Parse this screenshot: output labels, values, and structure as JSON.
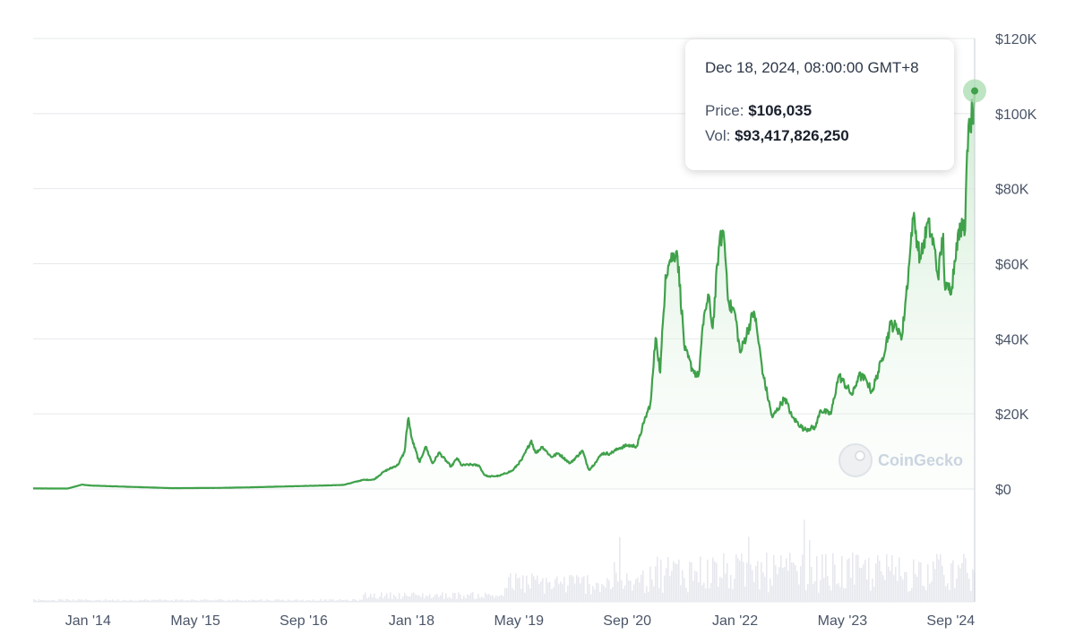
{
  "chart_data": {
    "type": "area",
    "title": "",
    "xlabel": "",
    "ylabel": "",
    "x_tick_labels": [
      "Jan '14",
      "May '15",
      "Sep '16",
      "Jan '18",
      "May '19",
      "Sep '20",
      "Jan '22",
      "May '23",
      "Sep '24"
    ],
    "x_tick_dates": [
      "2014-01-01",
      "2015-05-01",
      "2016-09-01",
      "2018-01-01",
      "2019-05-01",
      "2020-09-01",
      "2022-01-01",
      "2023-05-01",
      "2024-09-01"
    ],
    "y_tick_labels": [
      "$120K",
      "$100K",
      "$80K",
      "$60K",
      "$40K",
      "$20K",
      "$0"
    ],
    "y_tick_values": [
      120000,
      100000,
      80000,
      60000,
      40000,
      20000,
      0
    ],
    "xlim": [
      "2013-04-28",
      "2024-12-18"
    ],
    "ylim": [
      0,
      120000
    ],
    "grid": true,
    "colors": {
      "line": "#3fa14a",
      "fill_top": "#c8e8cb",
      "grid": "#e6e8eb",
      "volume": "#e6e8ee",
      "highlight": "#a8dcaf"
    },
    "series": [
      {
        "x": [
          "2013-04-28",
          "2013-10-01",
          "2013-12-04",
          "2014-01-15",
          "2014-06-01",
          "2015-01-15",
          "2015-08-01",
          "2016-01-01",
          "2016-06-15",
          "2016-12-31",
          "2017-03-01",
          "2017-05-25",
          "2017-07-15",
          "2017-08-31",
          "2017-10-31",
          "2017-11-30",
          "2017-12-17",
          "2017-12-31",
          "2018-02-06",
          "2018-03-05",
          "2018-04-06",
          "2018-05-05",
          "2018-06-29",
          "2018-07-25",
          "2018-08-15",
          "2018-09-20",
          "2018-11-01",
          "2018-11-25",
          "2018-12-15",
          "2019-02-01",
          "2019-04-02",
          "2019-05-15",
          "2019-06-26",
          "2019-07-15",
          "2019-08-15",
          "2019-09-24",
          "2019-10-26",
          "2019-12-18",
          "2020-02-12",
          "2020-03-12",
          "2020-04-10",
          "2020-05-10",
          "2020-06-15",
          "2020-07-27",
          "2020-09-01",
          "2020-10-15",
          "2020-11-15",
          "2020-12-16",
          "2021-01-08",
          "2021-01-28",
          "2021-02-21",
          "2021-03-13",
          "2021-04-14",
          "2021-05-19",
          "2021-06-22",
          "2021-07-20",
          "2021-08-15",
          "2021-09-07",
          "2021-09-21",
          "2021-10-20",
          "2021-11-10",
          "2021-12-04",
          "2022-01-01",
          "2022-01-24",
          "2022-03-28",
          "2022-05-09",
          "2022-06-18",
          "2022-08-14",
          "2022-09-15",
          "2022-11-09",
          "2022-12-31",
          "2023-01-20",
          "2023-03-10",
          "2023-04-14",
          "2023-06-15",
          "2023-07-13",
          "2023-08-17",
          "2023-09-11",
          "2023-10-24",
          "2023-12-05",
          "2024-01-11",
          "2024-01-23",
          "2024-02-28",
          "2024-03-14",
          "2024-04-17",
          "2024-05-21",
          "2024-06-20",
          "2024-07-05",
          "2024-07-29",
          "2024-08-05",
          "2024-09-06",
          "2024-09-27",
          "2024-10-29",
          "2024-11-05",
          "2024-11-12",
          "2024-11-22",
          "2024-12-02",
          "2024-12-05",
          "2024-12-10",
          "2024-12-18"
        ],
        "y": [
          135,
          120,
          1150,
          900,
          640,
          215,
          280,
          430,
          690,
          960,
          1100,
          2400,
          2500,
          4700,
          6400,
          9800,
          19300,
          13800,
          7000,
          11400,
          6700,
          9700,
          5900,
          8200,
          6300,
          6500,
          6300,
          3800,
          3300,
          3500,
          4900,
          7900,
          12900,
          9500,
          11300,
          8500,
          9500,
          6800,
          10200,
          5000,
          7000,
          9500,
          9400,
          10900,
          11600,
          11400,
          17700,
          23000,
          41000,
          31000,
          57000,
          61000,
          63500,
          37000,
          32000,
          29800,
          47000,
          51000,
          42000,
          65000,
          68800,
          49000,
          47000,
          36000,
          47500,
          30000,
          19000,
          24300,
          19200,
          15800,
          16500,
          21000,
          20000,
          30300,
          25000,
          30300,
          29000,
          25800,
          34000,
          43900,
          42700,
          39500,
          61000,
          73000,
          61000,
          71000,
          64000,
          56500,
          68000,
          53000,
          53900,
          65500,
          72000,
          69000,
          88000,
          99000,
          95000,
          103700,
          96000,
          106035
        ]
      }
    ],
    "tooltip": {
      "date": "Dec 18, 2024, 08:00:00 GMT+8",
      "price_label": "Price: ",
      "price_value": "$106,035",
      "vol_label": "Vol: ",
      "vol_value": "$93,417,826,250"
    },
    "watermark": "CoinGecko",
    "legend": "none"
  }
}
